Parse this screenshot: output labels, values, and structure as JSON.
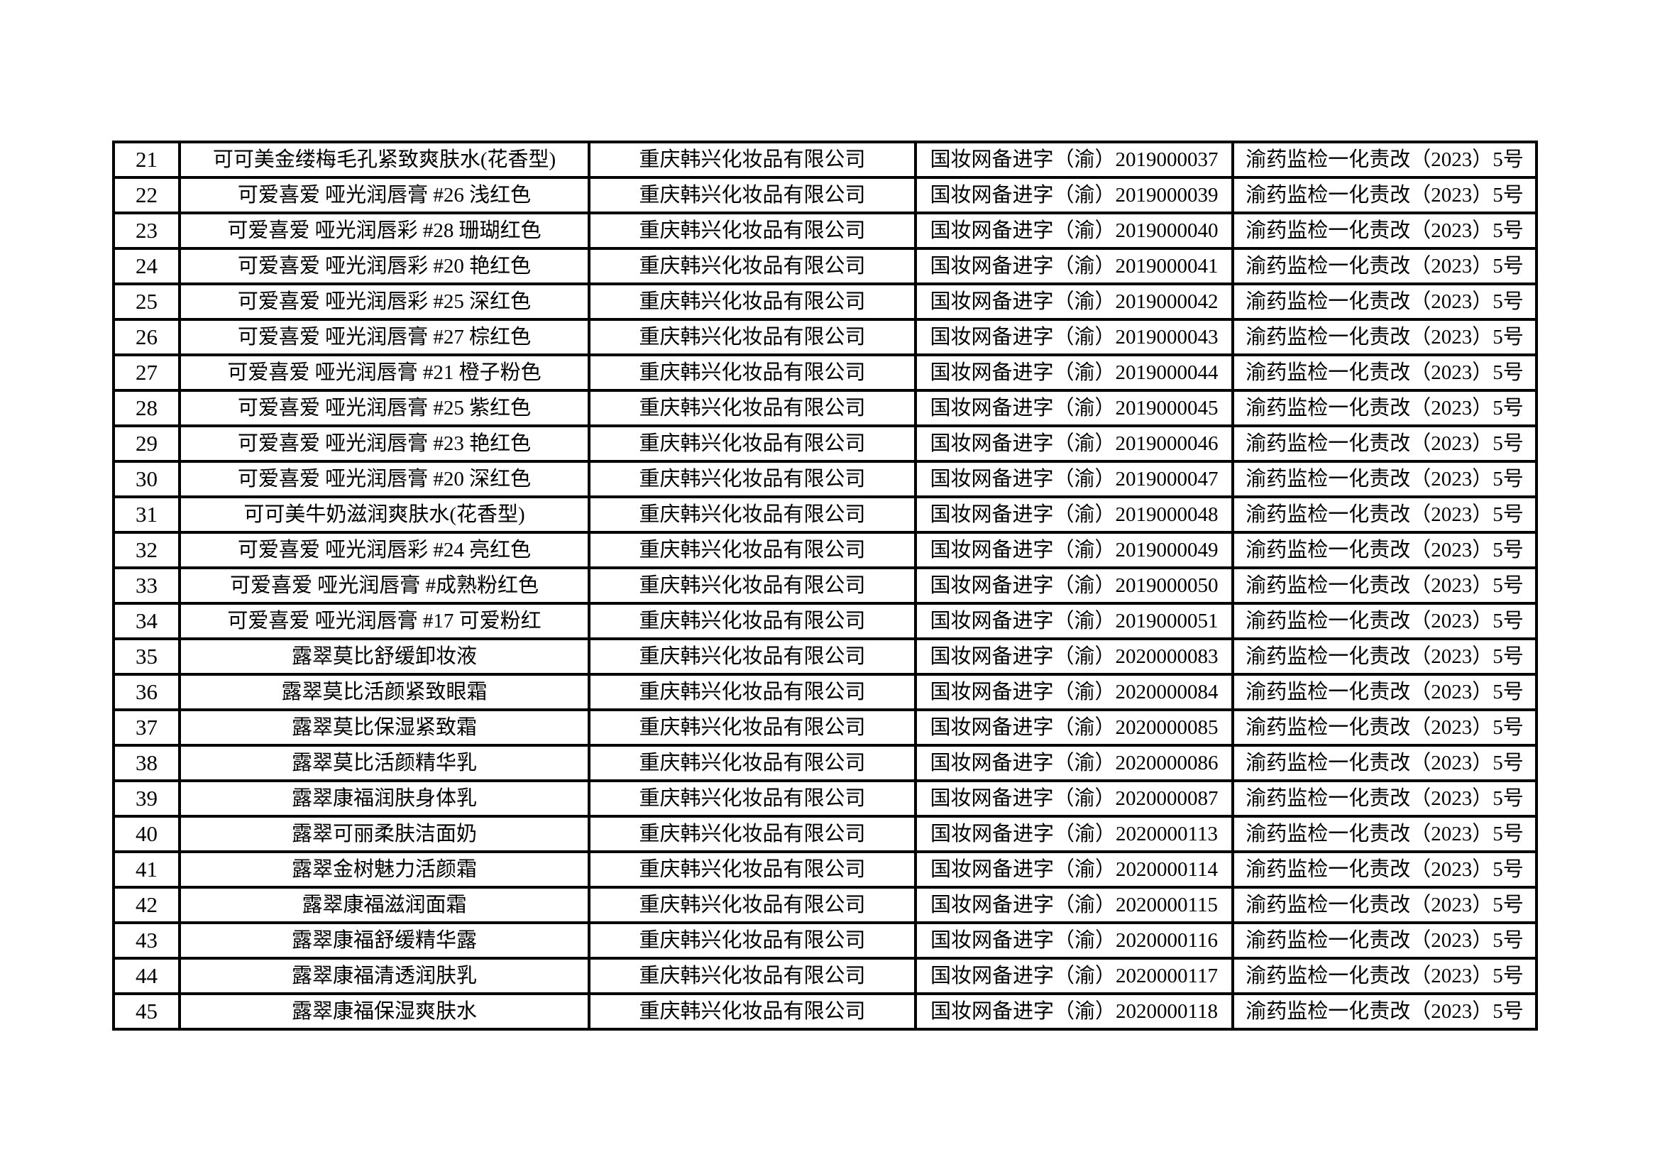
{
  "table": {
    "rows": [
      {
        "no": "21",
        "product": "可可美金缕梅毛孔紧致爽肤水(花香型)",
        "company": "重庆韩兴化妆品有限公司",
        "reg_no": "国妆网备进字（渝）2019000037",
        "doc_no": "渝药监检一化责改（2023）5号"
      },
      {
        "no": "22",
        "product": "可爱喜爱 哑光润唇膏 #26 浅红色",
        "company": "重庆韩兴化妆品有限公司",
        "reg_no": "国妆网备进字（渝）2019000039",
        "doc_no": "渝药监检一化责改（2023）5号"
      },
      {
        "no": "23",
        "product": "可爱喜爱 哑光润唇彩 #28 珊瑚红色",
        "company": "重庆韩兴化妆品有限公司",
        "reg_no": "国妆网备进字（渝）2019000040",
        "doc_no": "渝药监检一化责改（2023）5号"
      },
      {
        "no": "24",
        "product": "可爱喜爱 哑光润唇彩 #20 艳红色",
        "company": "重庆韩兴化妆品有限公司",
        "reg_no": "国妆网备进字（渝）2019000041",
        "doc_no": "渝药监检一化责改（2023）5号"
      },
      {
        "no": "25",
        "product": "可爱喜爱 哑光润唇彩 #25 深红色",
        "company": "重庆韩兴化妆品有限公司",
        "reg_no": "国妆网备进字（渝）2019000042",
        "doc_no": "渝药监检一化责改（2023）5号"
      },
      {
        "no": "26",
        "product": "可爱喜爱 哑光润唇膏 #27 棕红色",
        "company": "重庆韩兴化妆品有限公司",
        "reg_no": "国妆网备进字（渝）2019000043",
        "doc_no": "渝药监检一化责改（2023）5号"
      },
      {
        "no": "27",
        "product": "可爱喜爱 哑光润唇膏 #21 橙子粉色",
        "company": "重庆韩兴化妆品有限公司",
        "reg_no": "国妆网备进字（渝）2019000044",
        "doc_no": "渝药监检一化责改（2023）5号"
      },
      {
        "no": "28",
        "product": "可爱喜爱 哑光润唇膏 #25 紫红色",
        "company": "重庆韩兴化妆品有限公司",
        "reg_no": "国妆网备进字（渝）2019000045",
        "doc_no": "渝药监检一化责改（2023）5号"
      },
      {
        "no": "29",
        "product": "可爱喜爱 哑光润唇膏 #23 艳红色",
        "company": "重庆韩兴化妆品有限公司",
        "reg_no": "国妆网备进字（渝）2019000046",
        "doc_no": "渝药监检一化责改（2023）5号"
      },
      {
        "no": "30",
        "product": "可爱喜爱 哑光润唇膏 #20 深红色",
        "company": "重庆韩兴化妆品有限公司",
        "reg_no": "国妆网备进字（渝）2019000047",
        "doc_no": "渝药监检一化责改（2023）5号"
      },
      {
        "no": "31",
        "product": "可可美牛奶滋润爽肤水(花香型)",
        "company": "重庆韩兴化妆品有限公司",
        "reg_no": "国妆网备进字（渝）2019000048",
        "doc_no": "渝药监检一化责改（2023）5号"
      },
      {
        "no": "32",
        "product": "可爱喜爱 哑光润唇彩 #24 亮红色",
        "company": "重庆韩兴化妆品有限公司",
        "reg_no": "国妆网备进字（渝）2019000049",
        "doc_no": "渝药监检一化责改（2023）5号"
      },
      {
        "no": "33",
        "product": "可爱喜爱 哑光润唇膏 #成熟粉红色",
        "company": "重庆韩兴化妆品有限公司",
        "reg_no": "国妆网备进字（渝）2019000050",
        "doc_no": "渝药监检一化责改（2023）5号"
      },
      {
        "no": "34",
        "product": "可爱喜爱 哑光润唇膏 #17 可爱粉红",
        "company": "重庆韩兴化妆品有限公司",
        "reg_no": "国妆网备进字（渝）2019000051",
        "doc_no": "渝药监检一化责改（2023）5号"
      },
      {
        "no": "35",
        "product": "露翠莫比舒缓卸妆液",
        "company": "重庆韩兴化妆品有限公司",
        "reg_no": "国妆网备进字（渝）2020000083",
        "doc_no": "渝药监检一化责改（2023）5号"
      },
      {
        "no": "36",
        "product": "露翠莫比活颜紧致眼霜",
        "company": "重庆韩兴化妆品有限公司",
        "reg_no": "国妆网备进字（渝）2020000084",
        "doc_no": "渝药监检一化责改（2023）5号"
      },
      {
        "no": "37",
        "product": "露翠莫比保湿紧致霜",
        "company": "重庆韩兴化妆品有限公司",
        "reg_no": "国妆网备进字（渝）2020000085",
        "doc_no": "渝药监检一化责改（2023）5号"
      },
      {
        "no": "38",
        "product": "露翠莫比活颜精华乳",
        "company": "重庆韩兴化妆品有限公司",
        "reg_no": "国妆网备进字（渝）2020000086",
        "doc_no": "渝药监检一化责改（2023）5号"
      },
      {
        "no": "39",
        "product": "露翠康福润肤身体乳",
        "company": "重庆韩兴化妆品有限公司",
        "reg_no": "国妆网备进字（渝）2020000087",
        "doc_no": "渝药监检一化责改（2023）5号"
      },
      {
        "no": "40",
        "product": "露翠可丽柔肤洁面奶",
        "company": "重庆韩兴化妆品有限公司",
        "reg_no": "国妆网备进字（渝）2020000113",
        "doc_no": "渝药监检一化责改（2023）5号"
      },
      {
        "no": "41",
        "product": "露翠金树魅力活颜霜",
        "company": "重庆韩兴化妆品有限公司",
        "reg_no": "国妆网备进字（渝）2020000114",
        "doc_no": "渝药监检一化责改（2023）5号"
      },
      {
        "no": "42",
        "product": "露翠康福滋润面霜",
        "company": "重庆韩兴化妆品有限公司",
        "reg_no": "国妆网备进字（渝）2020000115",
        "doc_no": "渝药监检一化责改（2023）5号"
      },
      {
        "no": "43",
        "product": "露翠康福舒缓精华露",
        "company": "重庆韩兴化妆品有限公司",
        "reg_no": "国妆网备进字（渝）2020000116",
        "doc_no": "渝药监检一化责改（2023）5号"
      },
      {
        "no": "44",
        "product": "露翠康福清透润肤乳",
        "company": "重庆韩兴化妆品有限公司",
        "reg_no": "国妆网备进字（渝）2020000117",
        "doc_no": "渝药监检一化责改（2023）5号"
      },
      {
        "no": "45",
        "product": "露翠康福保湿爽肤水",
        "company": "重庆韩兴化妆品有限公司",
        "reg_no": "国妆网备进字（渝）2020000118",
        "doc_no": "渝药监检一化责改（2023）5号"
      }
    ]
  }
}
